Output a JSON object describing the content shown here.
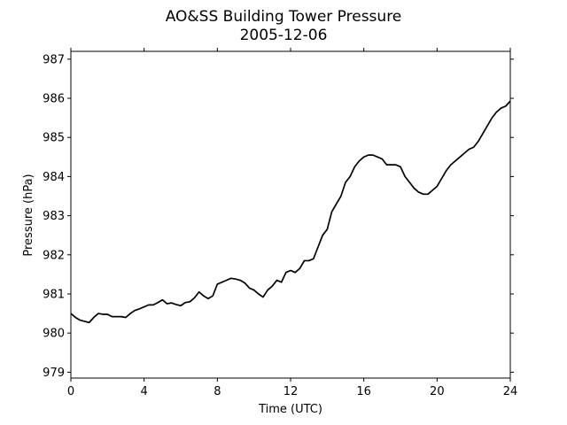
{
  "chart_data": {
    "type": "line",
    "title": "AO&SS Building Tower Pressure",
    "subtitle": "2005-12-06",
    "xlabel": "Time (UTC)",
    "ylabel": "Pressure (hPa)",
    "xlim": [
      0,
      24
    ],
    "ylim": [
      978.85,
      987.2
    ],
    "xticks": [
      0,
      4,
      8,
      12,
      16,
      20,
      24
    ],
    "yticks": [
      979,
      980,
      981,
      982,
      983,
      984,
      985,
      986,
      987
    ],
    "grid": false,
    "line_color": "#000000",
    "series": [
      {
        "x": [
          0,
          0.25,
          0.5,
          0.75,
          1.0,
          1.25,
          1.5,
          1.75,
          2.0,
          2.25,
          2.5,
          2.75,
          3.0,
          3.25,
          3.5,
          3.75,
          4.0,
          4.25,
          4.5,
          4.75,
          5.0,
          5.25,
          5.5,
          5.75,
          6.0,
          6.25,
          6.5,
          6.75,
          7.0,
          7.25,
          7.5,
          7.75,
          8.0,
          8.25,
          8.5,
          8.75,
          9.0,
          9.25,
          9.5,
          9.75,
          10.0,
          10.25,
          10.5,
          10.75,
          11.0,
          11.25,
          11.5,
          11.75,
          12.0,
          12.25,
          12.5,
          12.75,
          13.0,
          13.25,
          13.5,
          13.75,
          14.0,
          14.25,
          14.5,
          14.75,
          15.0,
          15.25,
          15.5,
          15.75,
          16.0,
          16.25,
          16.5,
          16.75,
          17.0,
          17.25,
          17.5,
          17.75,
          18.0,
          18.25,
          18.5,
          18.75,
          19.0,
          19.25,
          19.5,
          19.75,
          20.0,
          20.25,
          20.5,
          20.75,
          21.0,
          21.25,
          21.5,
          21.75,
          22.0,
          22.25,
          22.5,
          22.75,
          23.0,
          23.25,
          23.5,
          23.75,
          24.0
        ],
        "y": [
          980.5,
          980.4,
          980.33,
          980.3,
          980.27,
          980.4,
          980.5,
          980.48,
          980.48,
          980.42,
          980.42,
          980.42,
          980.4,
          980.5,
          980.58,
          980.62,
          980.67,
          980.72,
          980.72,
          980.78,
          980.85,
          980.75,
          980.77,
          980.73,
          980.7,
          980.78,
          980.8,
          980.9,
          981.05,
          980.95,
          980.88,
          980.95,
          981.25,
          981.3,
          981.35,
          981.4,
          981.38,
          981.35,
          981.28,
          981.15,
          981.1,
          981.0,
          980.92,
          981.1,
          981.2,
          981.35,
          981.3,
          981.55,
          981.6,
          981.55,
          981.65,
          981.85,
          981.85,
          981.9,
          982.2,
          982.5,
          982.65,
          983.1,
          983.3,
          983.5,
          983.85,
          984.0,
          984.25,
          984.4,
          984.5,
          984.55,
          984.55,
          984.5,
          984.45,
          984.3,
          984.3,
          984.3,
          984.25,
          984.0,
          983.85,
          983.7,
          983.6,
          983.55,
          983.55,
          983.65,
          983.75,
          983.95,
          984.15,
          984.3,
          984.4,
          984.5,
          984.6,
          984.7,
          984.75,
          984.9,
          985.1,
          985.3,
          985.5,
          985.65,
          985.75,
          985.8,
          985.93
        ]
      }
    ]
  }
}
